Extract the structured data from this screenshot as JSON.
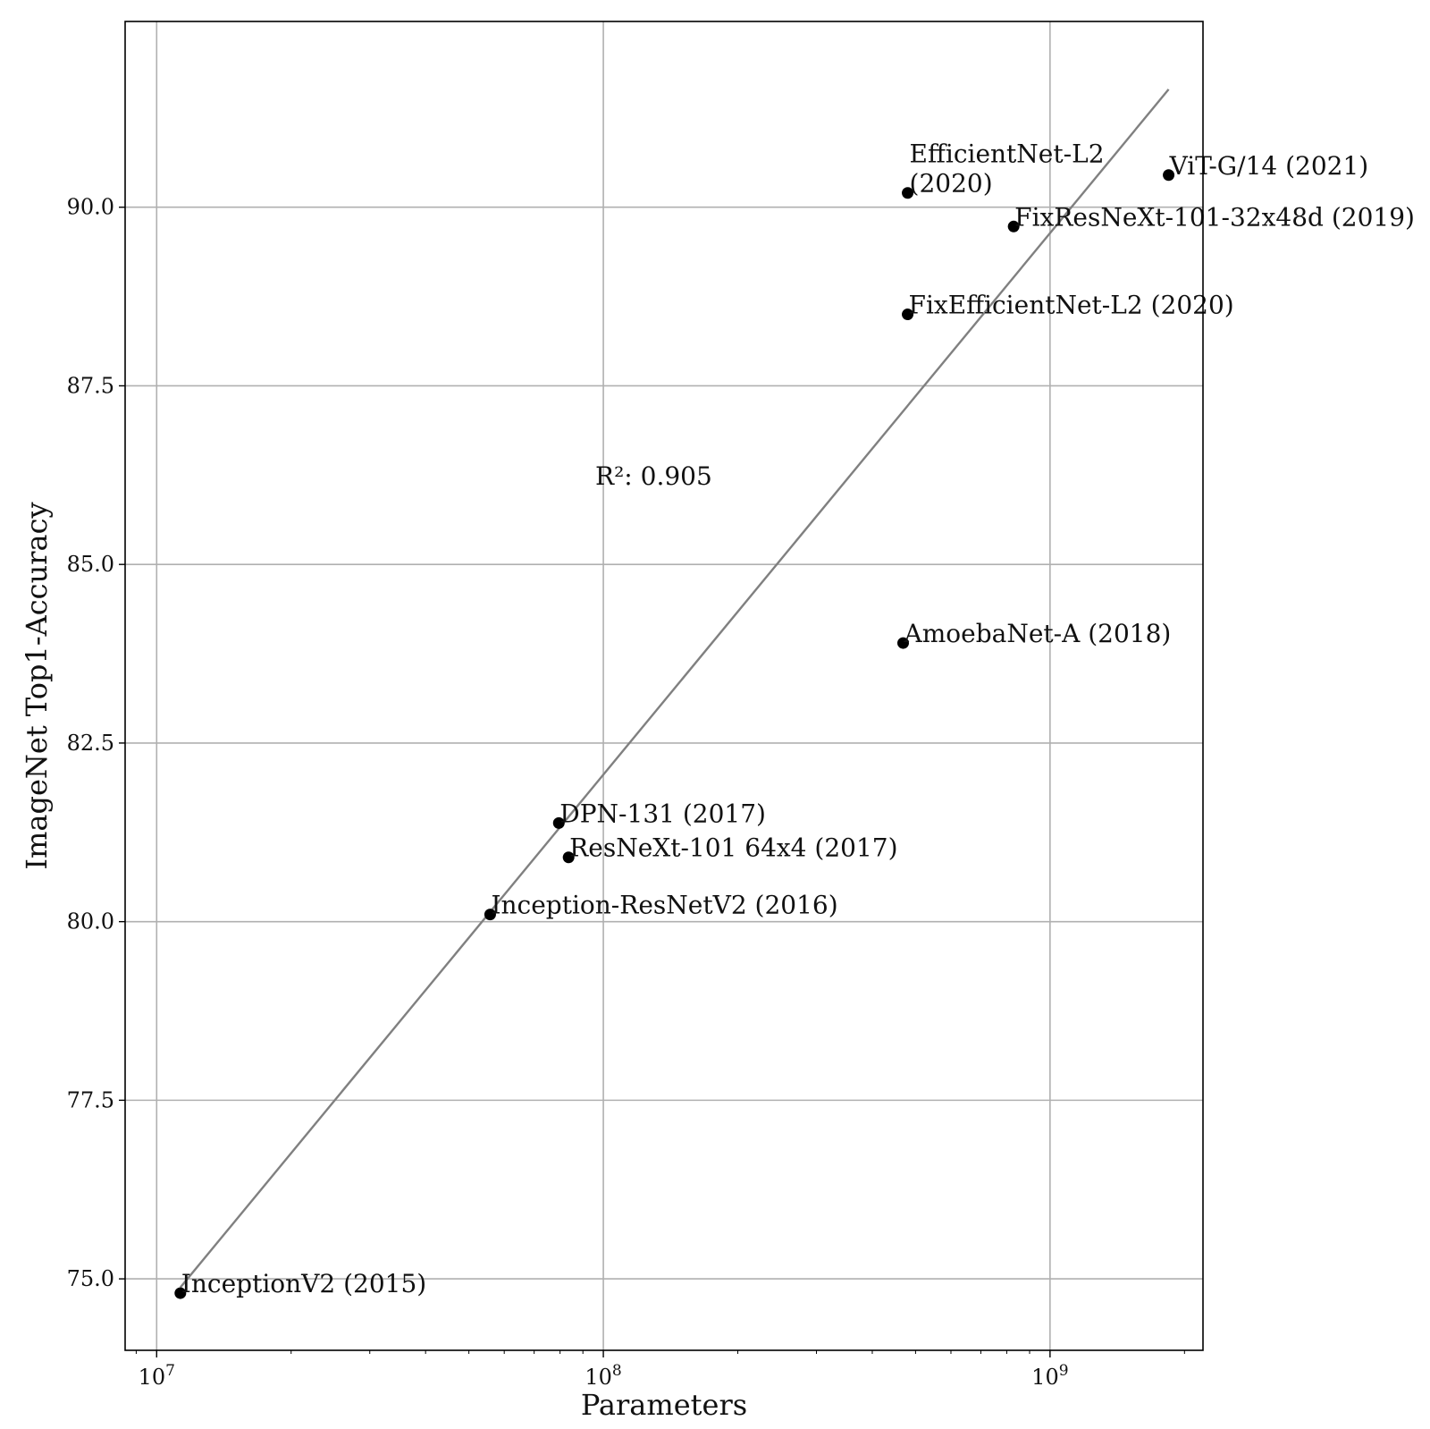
{
  "chart_data": {
    "type": "scatter",
    "title": "",
    "xlabel": "Parameters",
    "ylabel": "ImageNet Top1-Accuracy",
    "xscale": "log",
    "xlim": [
      8500000,
      2200000000
    ],
    "ylim": [
      74.0,
      92.6
    ],
    "x_ticks": [
      {
        "value": 10000000,
        "label": "10^7"
      },
      {
        "value": 100000000,
        "label": "10^8"
      },
      {
        "value": 1000000000,
        "label": "10^9"
      }
    ],
    "y_ticks": [
      75.0,
      77.5,
      80.0,
      82.5,
      85.0,
      87.5,
      90.0
    ],
    "y_tick_labels": [
      "75.0",
      "77.5",
      "80.0",
      "82.5",
      "85.0",
      "87.5",
      "90.0"
    ],
    "grid": true,
    "point_color": "#000000",
    "fit_line_color": "#808080",
    "points": [
      {
        "label": "InceptionV2 (2015)",
        "x": 11300000,
        "y": 74.8
      },
      {
        "label": "Inception-ResNetV2 (2016)",
        "x": 55800000,
        "y": 80.1
      },
      {
        "label": "DPN-131 (2017)",
        "x": 79500000,
        "y": 81.38
      },
      {
        "label": "ResNeXt-101 64x4 (2017)",
        "x": 83600000,
        "y": 80.9
      },
      {
        "label": "AmoebaNet-A (2018)",
        "x": 469000000,
        "y": 83.9
      },
      {
        "label": "FixEfficientNet-L2 (2020)",
        "x": 480000000,
        "y": 88.5
      },
      {
        "label": "EfficientNet-L2",
        "label_line2": "(2020)",
        "x": 480000000,
        "y": 90.2
      },
      {
        "label": "FixResNeXt-101-32x48d (2019)",
        "x": 829000000,
        "y": 89.73
      },
      {
        "label": "ViT-G/14 (2021)",
        "x": 1843000000,
        "y": 90.45
      }
    ],
    "fit_line": {
      "x": [
        11300000,
        1843000000
      ],
      "y": [
        74.88,
        91.65
      ]
    },
    "annotation": "R²: 0.905"
  }
}
